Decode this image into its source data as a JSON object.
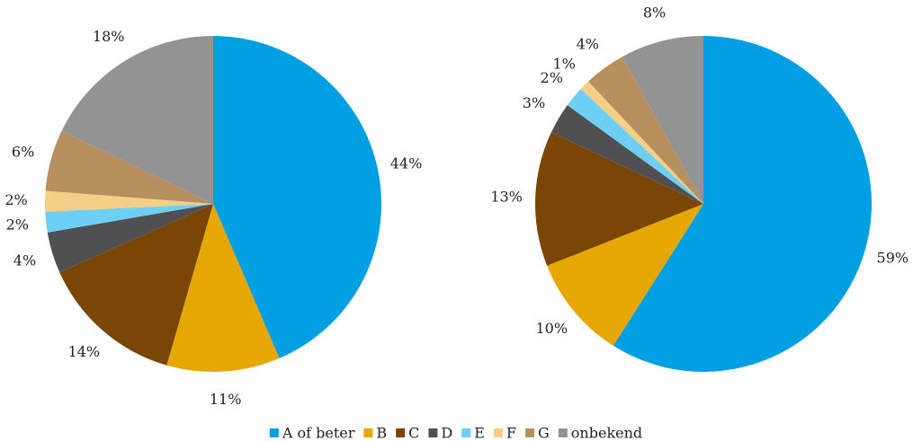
{
  "chart_data": [
    {
      "type": "pie",
      "categories": [
        "A of beter",
        "B",
        "C",
        "D",
        "E",
        "F",
        "G",
        "onbekend"
      ],
      "colors": [
        "#009fe3",
        "#e6a800",
        "#7a4606",
        "#505052",
        "#6dcff6",
        "#f5cf86",
        "#b88f5f",
        "#939393"
      ],
      "values": [
        44,
        11,
        14,
        4,
        2,
        2,
        6,
        18
      ],
      "value_labels": [
        "44%",
        "11%",
        "14%",
        "4%",
        "2%",
        "2%",
        "6%",
        "18%"
      ]
    },
    {
      "type": "pie",
      "values": [
        59,
        10,
        13,
        3,
        2,
        1,
        4,
        8
      ],
      "value_labels": [
        "59%",
        "10%",
        "13%",
        "3%",
        "2%",
        "1%",
        "4%",
        "8%"
      ]
    }
  ]
}
